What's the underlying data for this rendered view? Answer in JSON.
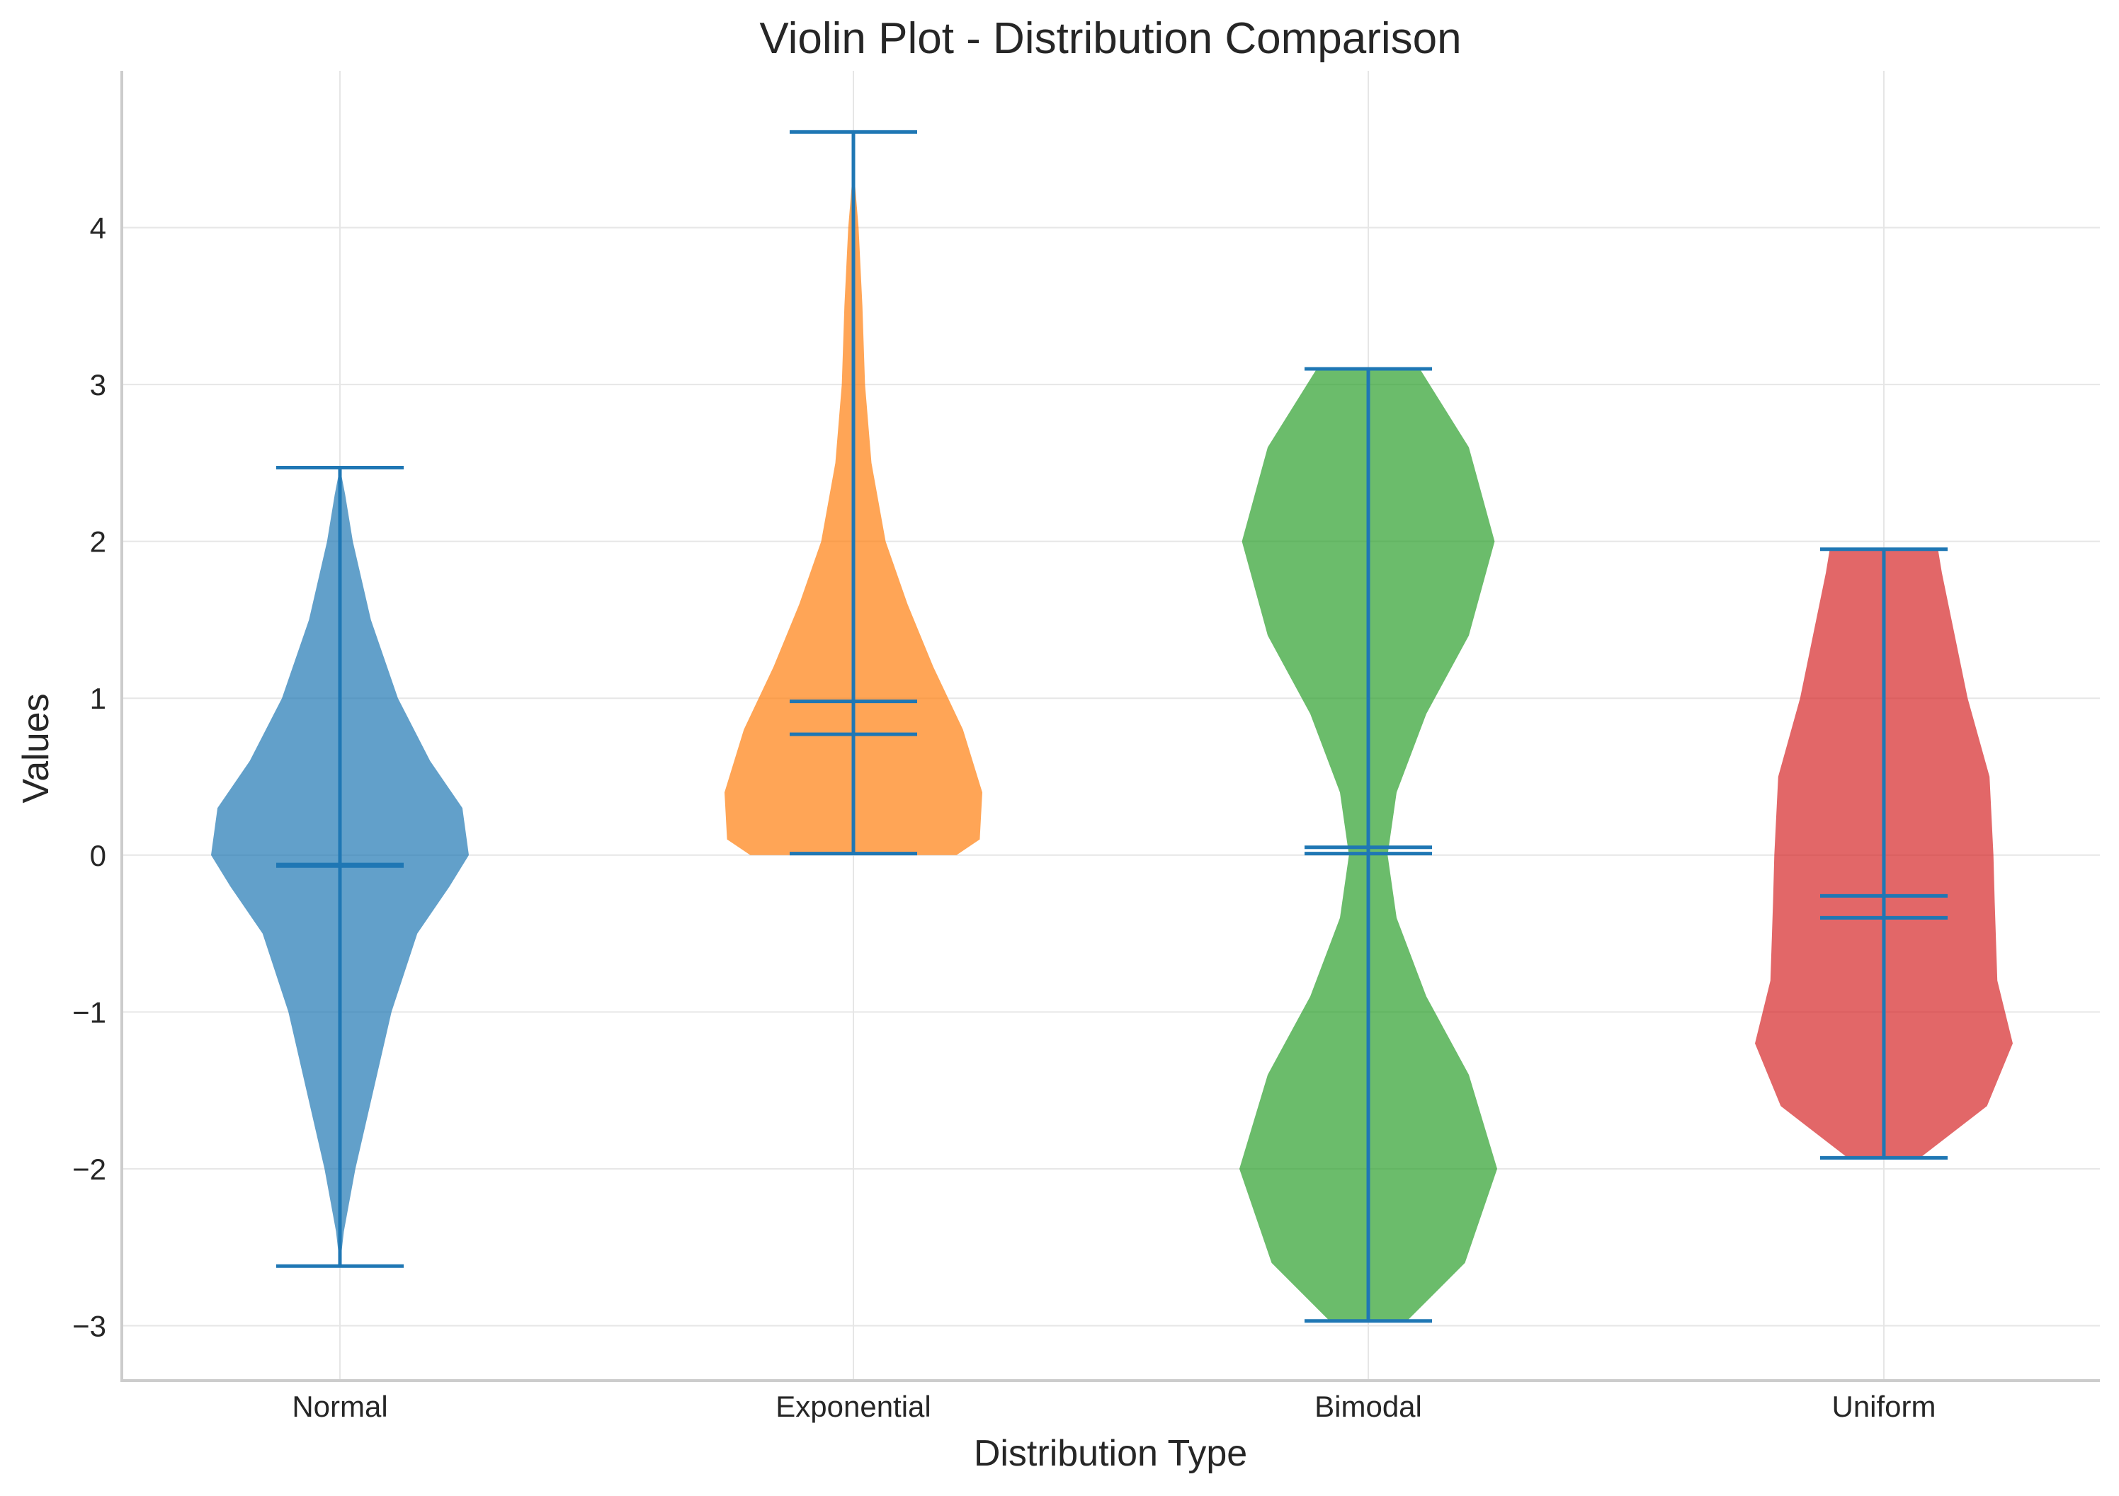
{
  "chart_data": {
    "type": "violin",
    "title": "Violin Plot - Distribution Comparison",
    "xlabel": "Distribution Type",
    "ylabel": "Values",
    "categories": [
      "Normal",
      "Exponential",
      "Bimodal",
      "Uniform"
    ],
    "ylim": [
      -3.35,
      5.0
    ],
    "yticks": [
      -3,
      -2,
      -1,
      0,
      1,
      2,
      3,
      4
    ],
    "ytick_labels": [
      "−3",
      "−2",
      "−1",
      "0",
      "1",
      "2",
      "3",
      "4"
    ],
    "grid": true,
    "series": [
      {
        "name": "Normal",
        "color": "#1f77b4",
        "min": -2.62,
        "max": 2.47,
        "mean": -0.06,
        "median": -0.07,
        "profile": [
          [
            -2.62,
            0.0
          ],
          [
            -2.4,
            0.03
          ],
          [
            -2.0,
            0.12
          ],
          [
            -1.5,
            0.26
          ],
          [
            -1.0,
            0.4
          ],
          [
            -0.5,
            0.6
          ],
          [
            -0.2,
            0.85
          ],
          [
            0.0,
            1.0
          ],
          [
            0.3,
            0.95
          ],
          [
            0.6,
            0.7
          ],
          [
            1.0,
            0.45
          ],
          [
            1.5,
            0.24
          ],
          [
            2.0,
            0.1
          ],
          [
            2.3,
            0.04
          ],
          [
            2.47,
            0.0
          ]
        ]
      },
      {
        "name": "Exponential",
        "color": "#ff7f0e",
        "min": 0.01,
        "max": 4.61,
        "mean": 0.98,
        "median": 0.77,
        "profile": [
          [
            0.0,
            0.8
          ],
          [
            0.1,
            0.98
          ],
          [
            0.4,
            1.0
          ],
          [
            0.8,
            0.85
          ],
          [
            1.2,
            0.62
          ],
          [
            1.6,
            0.42
          ],
          [
            2.0,
            0.25
          ],
          [
            2.5,
            0.14
          ],
          [
            3.0,
            0.09
          ],
          [
            3.5,
            0.07
          ],
          [
            4.0,
            0.04
          ],
          [
            4.3,
            0.01
          ],
          [
            4.61,
            0.0
          ]
        ]
      },
      {
        "name": "Bimodal",
        "color": "#2ca02c",
        "min": -2.97,
        "max": 3.1,
        "mean": 0.05,
        "median": 0.01,
        "profile": [
          [
            -2.97,
            0.3
          ],
          [
            -2.6,
            0.75
          ],
          [
            -2.0,
            1.0
          ],
          [
            -1.4,
            0.78
          ],
          [
            -0.9,
            0.45
          ],
          [
            -0.4,
            0.22
          ],
          [
            0.0,
            0.15
          ],
          [
            0.4,
            0.22
          ],
          [
            0.9,
            0.45
          ],
          [
            1.4,
            0.78
          ],
          [
            2.0,
            0.98
          ],
          [
            2.6,
            0.78
          ],
          [
            3.1,
            0.4
          ]
        ]
      },
      {
        "name": "Uniform",
        "color": "#d62728",
        "min": -1.93,
        "max": 1.95,
        "mean": -0.26,
        "median": -0.4,
        "profile": [
          [
            -1.93,
            0.28
          ],
          [
            -1.6,
            0.8
          ],
          [
            -1.2,
            1.0
          ],
          [
            -0.8,
            0.88
          ],
          [
            -0.3,
            0.86
          ],
          [
            0.0,
            0.85
          ],
          [
            0.5,
            0.82
          ],
          [
            1.0,
            0.65
          ],
          [
            1.4,
            0.55
          ],
          [
            1.8,
            0.45
          ],
          [
            1.95,
            0.42
          ]
        ]
      }
    ]
  }
}
